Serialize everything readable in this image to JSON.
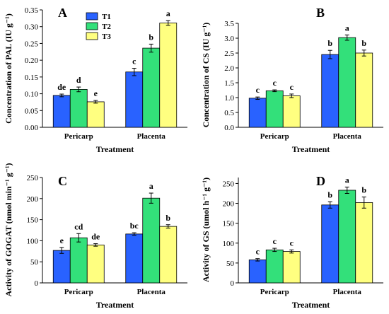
{
  "legend": [
    "T1",
    "T2",
    "T3"
  ],
  "colors": {
    "T1": "#2962ff",
    "T2": "#33e07a",
    "T3": "#ffff80"
  },
  "chart_data": [
    {
      "type": "bar",
      "panel": "A",
      "categories": [
        "Pericarp",
        "Placenta"
      ],
      "series": [
        {
          "name": "T1",
          "values": [
            0.095,
            0.165
          ],
          "errors": [
            0.004,
            0.011
          ],
          "letters": [
            "de",
            "c"
          ]
        },
        {
          "name": "T2",
          "values": [
            0.113,
            0.236
          ],
          "errors": [
            0.007,
            0.012
          ],
          "letters": [
            "d",
            "b"
          ]
        },
        {
          "name": "T3",
          "values": [
            0.076,
            0.311
          ],
          "errors": [
            0.004,
            0.007
          ],
          "letters": [
            "e",
            "a"
          ]
        }
      ],
      "ylabel": "Concentration of PAL (IU g⁻¹)",
      "xlabel": "Treatment",
      "ylim": [
        0,
        0.35
      ],
      "yticks": [
        "0.00",
        "0.05",
        "0.10",
        "0.15",
        "0.20",
        "0.25",
        "0.30",
        "0.35"
      ],
      "show_legend": true
    },
    {
      "type": "bar",
      "panel": "B",
      "categories": [
        "Pericarp",
        "Placenta"
      ],
      "series": [
        {
          "name": "T1",
          "values": [
            0.98,
            2.45
          ],
          "errors": [
            0.04,
            0.14
          ],
          "letters": [
            "c",
            "b"
          ]
        },
        {
          "name": "T2",
          "values": [
            1.23,
            3.02
          ],
          "errors": [
            0.03,
            0.09
          ],
          "letters": [
            "c",
            "a"
          ]
        },
        {
          "name": "T3",
          "values": [
            1.06,
            2.5
          ],
          "errors": [
            0.06,
            0.1
          ],
          "letters": [
            "c",
            "b"
          ]
        }
      ],
      "ylabel": "Concentration of CS (IU g⁻¹)",
      "xlabel": "Treatment",
      "ylim": [
        0,
        3.5
      ],
      "yticks": [
        "0.0",
        "0.5",
        "1.0",
        "1.5",
        "2.0",
        "2.5",
        "3.0",
        "3.5"
      ],
      "show_legend": false
    },
    {
      "type": "bar",
      "panel": "C",
      "categories": [
        "Pericarp",
        "Placenta"
      ],
      "series": [
        {
          "name": "T1",
          "values": [
            77,
            116
          ],
          "errors": [
            7,
            3
          ],
          "letters": [
            "e",
            "bc"
          ]
        },
        {
          "name": "T2",
          "values": [
            107,
            201
          ],
          "errors": [
            10,
            12
          ],
          "letters": [
            "cd",
            "a"
          ]
        },
        {
          "name": "T3",
          "values": [
            90,
            134
          ],
          "errors": [
            3,
            4
          ],
          "letters": [
            "de",
            "b"
          ]
        }
      ],
      "ylabel": "Activity of GOGAT (nmol min⁻¹ g⁻¹)",
      "xlabel": "Treatment",
      "ylim": [
        0,
        250
      ],
      "yticks": [
        "0",
        "50",
        "100",
        "150",
        "200",
        "250"
      ],
      "show_legend": false
    },
    {
      "type": "bar",
      "panel": "D",
      "categories": [
        "Pericarp",
        "Placenta"
      ],
      "series": [
        {
          "name": "T1",
          "values": [
            58,
            196
          ],
          "errors": [
            3,
            8
          ],
          "letters": [
            "c",
            "b"
          ]
        },
        {
          "name": "T2",
          "values": [
            83,
            233
          ],
          "errors": [
            4,
            8
          ],
          "letters": [
            "c",
            "a"
          ]
        },
        {
          "name": "T3",
          "values": [
            79,
            202
          ],
          "errors": [
            4,
            14
          ],
          "letters": [
            "c",
            "b"
          ]
        }
      ],
      "ylabel": "Activity of GS (umol h⁻¹ g⁻¹)",
      "xlabel": "Treatment",
      "ylim": [
        0,
        265
      ],
      "yticks": [
        "0",
        "50",
        "100",
        "150",
        "200",
        "250"
      ],
      "show_legend": false
    }
  ]
}
